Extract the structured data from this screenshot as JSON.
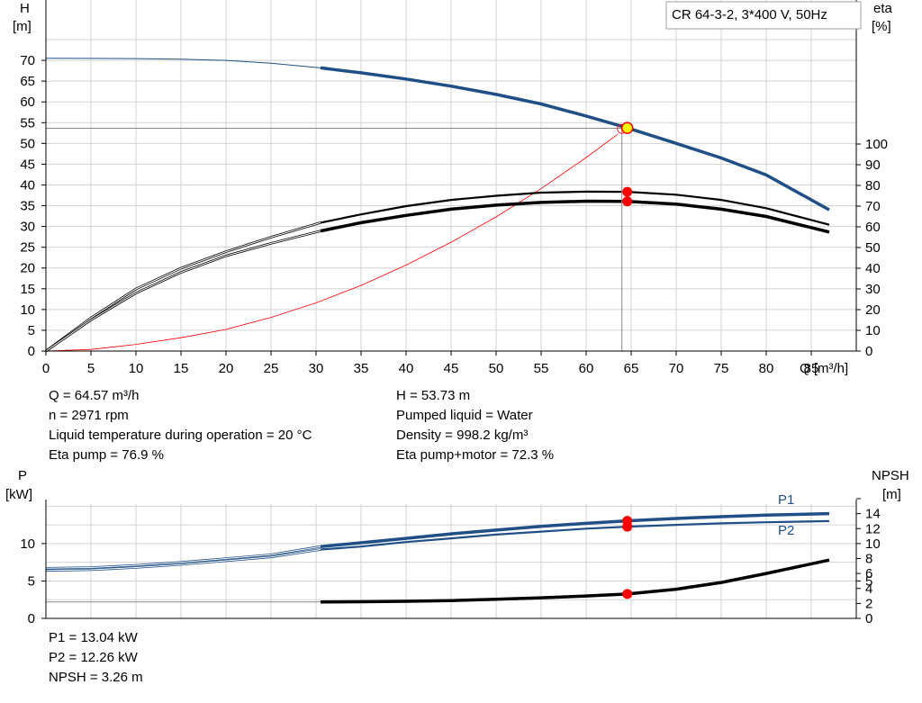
{
  "product_label": "CR 64-3-2, 3*400 V, 50Hz",
  "colors": {
    "blue": "#1f4f86",
    "black": "#000000",
    "red": "#ff0000",
    "duty_point": "#ffff00",
    "grid": "#d3d3d3",
    "duty_line": "#888888"
  },
  "chart_data": [
    {
      "type": "line",
      "title": "",
      "xlabel": "Q [m³/h]",
      "ylabel_left_unit": "H",
      "ylabel_left": "[m]",
      "ylabel_right_unit": "eta",
      "ylabel_right": "[%]",
      "xlim": [
        0,
        90
      ],
      "ylim_left": [
        0,
        75
      ],
      "ylim_right": [
        0,
        100
      ],
      "x_ticks": [
        "0",
        "5",
        "10",
        "15",
        "20",
        "25",
        "30",
        "35",
        "40",
        "45",
        "50",
        "55",
        "60",
        "65",
        "70",
        "75",
        "80",
        "85"
      ],
      "y_left_ticks": [
        "0",
        "5",
        "10",
        "15",
        "20",
        "25",
        "30",
        "35",
        "40",
        "45",
        "50",
        "55",
        "60",
        "65",
        "70"
      ],
      "y_right_ticks": [
        "0",
        "10",
        "20",
        "30",
        "40",
        "50",
        "60",
        "70",
        "80",
        "90",
        "100"
      ],
      "grid": true,
      "operating_range_start_q": 30.5,
      "series": [
        {
          "name": "H",
          "axis": "left",
          "color": "#1f4f86",
          "x": [
            0,
            5,
            10,
            15,
            20,
            25,
            30.5,
            35,
            40,
            45,
            50,
            55,
            60,
            64.57,
            70,
            75,
            80,
            87
          ],
          "y": [
            70.5,
            70.48,
            70.42,
            70.3,
            70.0,
            69.3,
            68.2,
            67.0,
            65.5,
            63.8,
            61.8,
            59.5,
            56.6,
            53.73,
            50.0,
            46.5,
            42.4,
            34.0
          ]
        },
        {
          "name": "Eta pump",
          "axis": "right",
          "color": "#000000",
          "x": [
            0,
            5,
            10,
            15,
            20,
            25,
            30.5,
            35,
            40,
            45,
            50,
            55,
            60,
            64.57,
            70,
            75,
            80,
            87
          ],
          "y": [
            0,
            16,
            30,
            40,
            48,
            55,
            62,
            66,
            70,
            73,
            75,
            76.5,
            77,
            76.9,
            75.5,
            73,
            69,
            61
          ]
        },
        {
          "name": "Eta pump+motor",
          "axis": "right",
          "color": "#000000",
          "x": [
            0,
            5,
            10,
            15,
            20,
            25,
            30.5,
            35,
            40,
            45,
            50,
            55,
            60,
            64.57,
            70,
            75,
            80,
            87
          ],
          "y": [
            0,
            15,
            28,
            38,
            46,
            52,
            58,
            62,
            65.5,
            68.5,
            70.5,
            71.8,
            72.4,
            72.3,
            71,
            68.5,
            65,
            57.5
          ]
        },
        {
          "name": "System curve",
          "axis": "left",
          "color": "#ff0000",
          "x": [
            0,
            5,
            10,
            15,
            20,
            25,
            30,
            35,
            40,
            45,
            50,
            55,
            60,
            63.5
          ],
          "y": [
            0,
            0.4,
            1.6,
            3.2,
            5.2,
            8.1,
            11.6,
            15.8,
            20.7,
            26.2,
            32.3,
            39.1,
            46.6,
            52.2
          ]
        }
      ],
      "duty_point": {
        "q": 64.57,
        "h": 53.73,
        "eta_pump": 76.9,
        "eta_pump_motor": 72.3
      }
    },
    {
      "type": "line",
      "title": "",
      "ylabel_left_unit": "P",
      "ylabel_left": "[kW]",
      "ylabel_right_unit": "NPSH",
      "ylabel_right": "[m]",
      "xlim": [
        0,
        90
      ],
      "ylim_left": [
        0,
        16
      ],
      "ylim_right": [
        0,
        16
      ],
      "y_left_ticks": [
        "0",
        "5",
        "10"
      ],
      "y_right_ticks": [
        "0",
        "2",
        "4",
        "5",
        "6",
        "8",
        "10",
        "12",
        "14"
      ],
      "grid": true,
      "series": [
        {
          "name": "P1",
          "axis": "left",
          "color": "#1f4f86",
          "x": [
            0,
            5,
            10,
            15,
            20,
            25,
            30.5,
            35,
            40,
            45,
            50,
            55,
            60,
            64.57,
            70,
            75,
            80,
            87
          ],
          "y": [
            6.7,
            6.8,
            7.1,
            7.5,
            8.0,
            8.5,
            9.6,
            10.1,
            10.7,
            11.3,
            11.8,
            12.3,
            12.7,
            13.04,
            13.35,
            13.6,
            13.8,
            14.0
          ]
        },
        {
          "name": "P2",
          "axis": "left",
          "color": "#1f4f86",
          "x": [
            0,
            5,
            10,
            15,
            20,
            25,
            30.5,
            35,
            40,
            45,
            50,
            55,
            60,
            64.57,
            70,
            75,
            80,
            87
          ],
          "y": [
            6.4,
            6.5,
            6.8,
            7.2,
            7.7,
            8.2,
            9.2,
            9.6,
            10.2,
            10.7,
            11.2,
            11.6,
            12.0,
            12.26,
            12.5,
            12.7,
            12.85,
            13.0
          ]
        },
        {
          "name": "NPSH",
          "axis": "right",
          "color": "#000000",
          "x": [
            30.5,
            35,
            40,
            45,
            50,
            55,
            60,
            64.57,
            70,
            75,
            80,
            87
          ],
          "y": [
            2.2,
            2.22,
            2.28,
            2.38,
            2.55,
            2.75,
            3.0,
            3.26,
            3.9,
            4.8,
            6.0,
            7.8
          ]
        }
      ],
      "npsh_baseline": 2.2,
      "duty_point": {
        "q": 64.57,
        "p1": 13.04,
        "p2": 12.26,
        "npsh": 3.26
      }
    }
  ],
  "info_top_left": [
    "Q = 64.57 m³/h",
    "n = 2971 rpm",
    "Liquid temperature during operation = 20 °C",
    "Eta pump = 76.9 %"
  ],
  "info_top_right": [
    "H = 53.73 m",
    "Pumped liquid = Water",
    "Density = 998.2 kg/m³",
    "Eta pump+motor = 72.3 %"
  ],
  "info_bottom": [
    "P1 = 13.04 kW",
    "P2 = 12.26 kW",
    "NPSH = 3.26 m"
  ]
}
